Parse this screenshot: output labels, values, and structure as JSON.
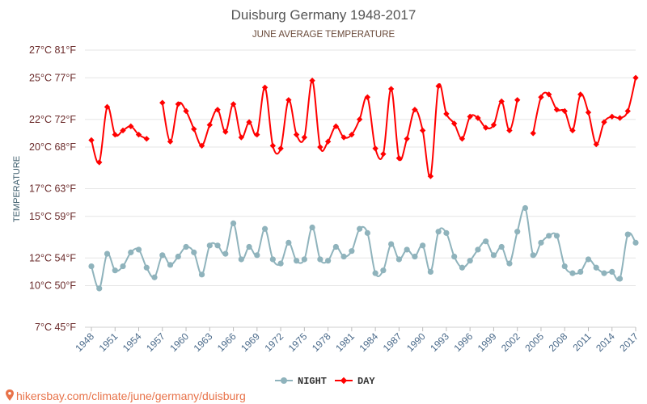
{
  "chart_data": {
    "type": "line",
    "title": "Duisburg Germany 1948-2017",
    "subtitle": "JUNE AVERAGE TEMPERATURE",
    "ylabel": "TEMPERATURE",
    "xlabel": "",
    "ylim_c": [
      7,
      27
    ],
    "y_ticks": [
      {
        "value": 7,
        "label": "7°C 45°F"
      },
      {
        "value": 10,
        "label": "10°C 50°F"
      },
      {
        "value": 12,
        "label": "12°C 54°F"
      },
      {
        "value": 15,
        "label": "15°C 59°F"
      },
      {
        "value": 17,
        "label": "17°C 63°F"
      },
      {
        "value": 20,
        "label": "20°C 68°F"
      },
      {
        "value": 22,
        "label": "22°C 72°F"
      },
      {
        "value": 25,
        "label": "25°C 77°F"
      },
      {
        "value": 27,
        "label": "27°C 81°F"
      }
    ],
    "x_start": 1948,
    "x_end": 2017,
    "x_ticks": [
      1948,
      1951,
      1954,
      1957,
      1960,
      1963,
      1966,
      1969,
      1972,
      1975,
      1978,
      1981,
      1984,
      1987,
      1990,
      1993,
      1996,
      1999,
      2002,
      2005,
      2008,
      2011,
      2014,
      2017
    ],
    "grid": "horizontal",
    "legend_position": "bottom",
    "series": [
      {
        "name": "NIGHT",
        "color": "#8fb3bc",
        "values": [
          11.4,
          9.8,
          12.3,
          11.1,
          11.4,
          12.4,
          12.6,
          11.3,
          10.6,
          12.2,
          11.5,
          12.1,
          12.8,
          12.4,
          10.8,
          12.9,
          12.9,
          12.3,
          14.5,
          11.9,
          12.8,
          12.2,
          14.1,
          11.9,
          11.6,
          13.1,
          11.8,
          11.9,
          14.2,
          11.9,
          11.8,
          12.8,
          12.1,
          12.5,
          14.1,
          13.8,
          10.9,
          11.1,
          13.0,
          11.9,
          12.6,
          12.1,
          12.9,
          11.0,
          13.9,
          13.8,
          12.1,
          11.3,
          11.8,
          12.6,
          13.2,
          12.2,
          12.8,
          11.6,
          13.9,
          15.6,
          12.2,
          13.1,
          13.6,
          13.6,
          11.4,
          10.9,
          11.0,
          11.9,
          11.3,
          10.9,
          11.0,
          10.5,
          13.7,
          13.1
        ]
      },
      {
        "name": "DAY",
        "color": "#ff0000",
        "values": [
          20.5,
          18.9,
          22.9,
          20.9,
          21.2,
          21.5,
          20.9,
          20.6,
          null,
          23.2,
          20.4,
          23.1,
          22.6,
          21.3,
          20.1,
          21.6,
          22.7,
          21.1,
          23.1,
          20.7,
          21.8,
          20.9,
          24.3,
          20.1,
          19.9,
          23.4,
          20.9,
          20.7,
          24.8,
          20.0,
          20.4,
          21.5,
          20.7,
          20.9,
          22.0,
          23.6,
          19.9,
          19.5,
          24.2,
          19.2,
          20.6,
          22.7,
          21.2,
          17.9,
          24.4,
          22.4,
          21.7,
          20.6,
          22.2,
          22.1,
          21.4,
          21.6,
          23.3,
          21.2,
          23.4,
          null,
          21.0,
          23.6,
          23.8,
          22.7,
          22.6,
          21.2,
          23.8,
          22.5,
          20.2,
          21.8,
          22.2,
          22.1,
          22.6,
          25.0
        ]
      }
    ]
  },
  "watermark": "hikersbay.com/climate/june/germany/duisburg"
}
